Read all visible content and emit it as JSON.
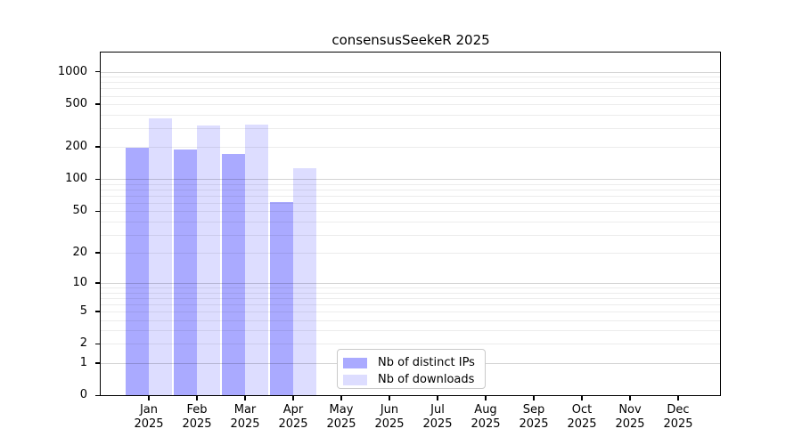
{
  "chart_data": {
    "type": "bar",
    "title": "consensusSeekeR 2025",
    "categories": [
      "Jan",
      "Feb",
      "Mar",
      "Apr",
      "May",
      "Jun",
      "Jul",
      "Aug",
      "Sep",
      "Oct",
      "Nov",
      "Dec"
    ],
    "category_year": "2025",
    "series": [
      {
        "name": "Nb of distinct IPs",
        "color": "#aaaaff",
        "values": [
          200,
          193,
          175,
          62,
          0,
          0,
          0,
          0,
          0,
          0,
          0,
          0
        ]
      },
      {
        "name": "Nb of downloads",
        "color": "#ddddff",
        "values": [
          375,
          320,
          325,
          128,
          0,
          0,
          0,
          0,
          0,
          0,
          0,
          0
        ]
      }
    ],
    "yticks": [
      0,
      1,
      2,
      5,
      10,
      20,
      50,
      100,
      200,
      500,
      1000
    ],
    "yscale": "log1p",
    "ylim": [
      0,
      1500
    ],
    "grid": "horizontal log minor and major gridlines",
    "legend_position": "bottom-center",
    "axis_color": "#000000",
    "background_color": "#ffffff"
  }
}
